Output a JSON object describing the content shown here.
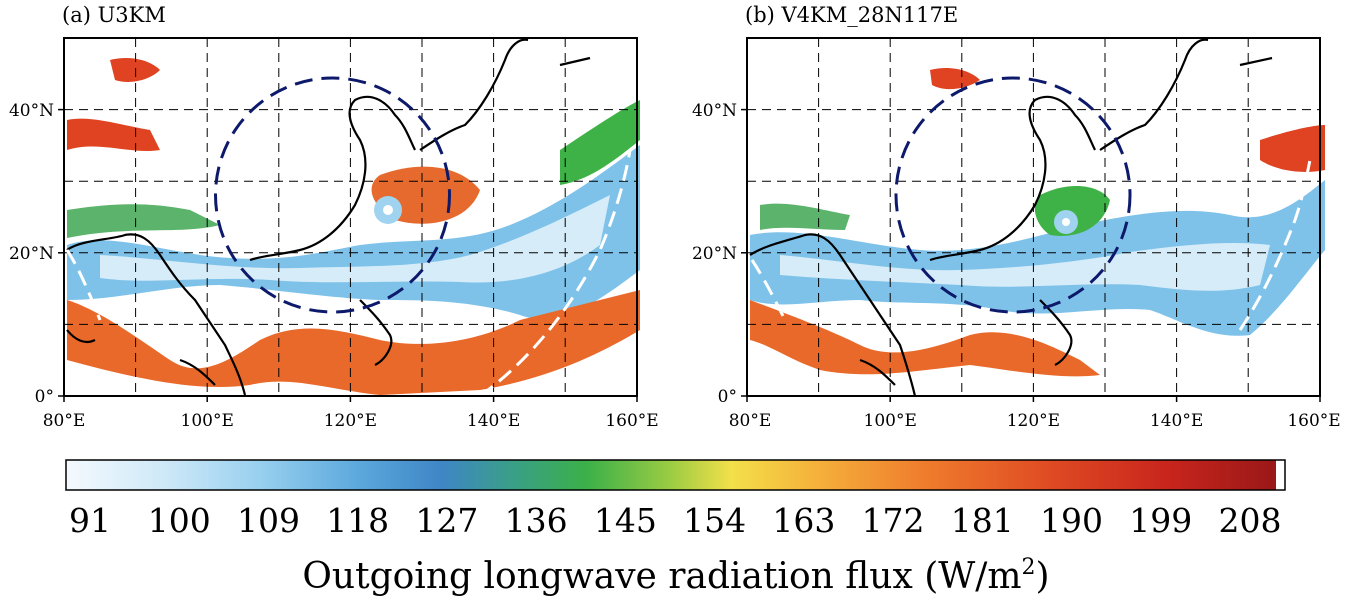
{
  "panels": [
    {
      "title": "(a) U3KM",
      "x_ticks": [
        "80°E",
        "100°E",
        "120°E",
        "140°E",
        "160°E"
      ],
      "y_ticks": [
        "0°",
        "20°N",
        "40°N"
      ],
      "x_range": [
        80,
        160
      ],
      "y_range": [
        0,
        50
      ],
      "circle_center": [
        118,
        28
      ],
      "circle_color": "#0d1a6b"
    },
    {
      "title": "(b) V4KM_28N117E",
      "x_ticks": [
        "80°E",
        "100°E",
        "120°E",
        "140°E",
        "160°E"
      ],
      "y_ticks": [
        "0°",
        "20°N",
        "40°N"
      ],
      "x_range": [
        80,
        160
      ],
      "y_range": [
        0,
        50
      ],
      "circle_center": [
        117,
        28
      ],
      "circle_color": "#0d1a6b"
    }
  ],
  "colorbar": {
    "ticks": [
      "91",
      "100",
      "109",
      "118",
      "127",
      "136",
      "145",
      "154",
      "163",
      "172",
      "181",
      "190",
      "199",
      "208"
    ],
    "colors": [
      "#f2f8fd",
      "#cde8f7",
      "#9fd3f0",
      "#6db3e0",
      "#3f88c9",
      "#2aa36a",
      "#3fb247",
      "#b5d33e",
      "#f1df45",
      "#f4b63c",
      "#f0832e",
      "#e55525",
      "#d22c1e",
      "#a01a1a"
    ],
    "label_main": "Outgoing longwave radiation flux (W/m",
    "label_sup": "2",
    "label_end": ")"
  }
}
